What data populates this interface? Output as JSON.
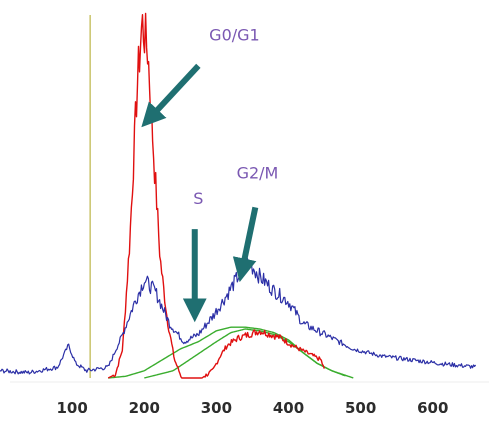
{
  "chart_data": {
    "type": "line",
    "title": "",
    "xlabel": "",
    "ylabel": "",
    "xlim": [
      0,
      680
    ],
    "ylim": [
      0,
      100
    ],
    "xticks": [
      "100",
      "200",
      "300",
      "400",
      "500",
      "600"
    ],
    "grid": false,
    "gate_x": 125,
    "series": [
      {
        "key": "total",
        "color": "#2b2fa6",
        "points": [
          [
            0,
            2
          ],
          [
            40,
            1.5
          ],
          [
            80,
            3
          ],
          [
            95,
            9
          ],
          [
            105,
            4
          ],
          [
            120,
            2
          ],
          [
            150,
            3
          ],
          [
            170,
            12
          ],
          [
            185,
            20
          ],
          [
            200,
            27
          ],
          [
            215,
            24
          ],
          [
            235,
            15
          ],
          [
            255,
            10
          ],
          [
            275,
            12
          ],
          [
            295,
            17
          ],
          [
            315,
            23
          ],
          [
            330,
            28
          ],
          [
            345,
            32
          ],
          [
            360,
            28
          ],
          [
            380,
            24
          ],
          [
            400,
            21
          ],
          [
            420,
            15
          ],
          [
            450,
            12
          ],
          [
            490,
            8
          ],
          [
            530,
            6
          ],
          [
            570,
            5
          ],
          [
            610,
            4
          ],
          [
            660,
            3
          ]
        ]
      },
      {
        "key": "g0g1",
        "color": "#e01010",
        "points": [
          [
            150,
            0
          ],
          [
            160,
            1
          ],
          [
            170,
            8
          ],
          [
            180,
            38
          ],
          [
            190,
            80
          ],
          [
            197,
            98
          ],
          [
            205,
            90
          ],
          [
            213,
            62
          ],
          [
            222,
            33
          ],
          [
            232,
            16
          ],
          [
            242,
            5
          ],
          [
            252,
            0
          ],
          [
            280,
            0
          ],
          [
            295,
            2
          ],
          [
            305,
            6
          ],
          [
            315,
            9
          ],
          [
            330,
            11
          ],
          [
            345,
            12
          ],
          [
            360,
            13
          ],
          [
            375,
            12
          ],
          [
            390,
            11
          ],
          [
            405,
            9
          ],
          [
            425,
            7
          ],
          [
            445,
            5
          ],
          [
            450,
            2
          ]
        ]
      },
      {
        "key": "s",
        "color": "#3aad2e",
        "points": [
          [
            150,
            0
          ],
          [
            175,
            0.5
          ],
          [
            200,
            2
          ],
          [
            225,
            5
          ],
          [
            250,
            8
          ],
          [
            275,
            10
          ],
          [
            300,
            13
          ],
          [
            320,
            14
          ],
          [
            340,
            14
          ],
          [
            360,
            13.5
          ],
          [
            380,
            12.5
          ],
          [
            400,
            10.5
          ],
          [
            420,
            7
          ],
          [
            440,
            4
          ],
          [
            460,
            2
          ],
          [
            480,
            0.5
          ]
        ]
      },
      {
        "key": "g2m",
        "color": "#3aad2e",
        "points": [
          [
            200,
            0
          ],
          [
            240,
            2
          ],
          [
            270,
            6
          ],
          [
            300,
            10
          ],
          [
            320,
            12.5
          ],
          [
            340,
            13.5
          ],
          [
            360,
            13
          ],
          [
            380,
            12
          ],
          [
            400,
            10
          ],
          [
            420,
            7
          ],
          [
            440,
            4
          ],
          [
            460,
            2
          ],
          [
            490,
            0
          ]
        ]
      }
    ],
    "annotations": [
      {
        "text": "G0/G1",
        "x": 290,
        "y": 93,
        "arrow_from": [
          275,
          86
        ],
        "arrow_to": [
          205,
          71
        ]
      },
      {
        "text": "G2/M",
        "x": 328,
        "y": 55,
        "arrow_from": [
          354,
          47
        ],
        "arrow_to": [
          335,
          29
        ]
      },
      {
        "text": "S",
        "x": 268,
        "y": 48,
        "arrow_from": [
          270,
          41
        ],
        "arrow_to": [
          270,
          18
        ]
      }
    ]
  }
}
